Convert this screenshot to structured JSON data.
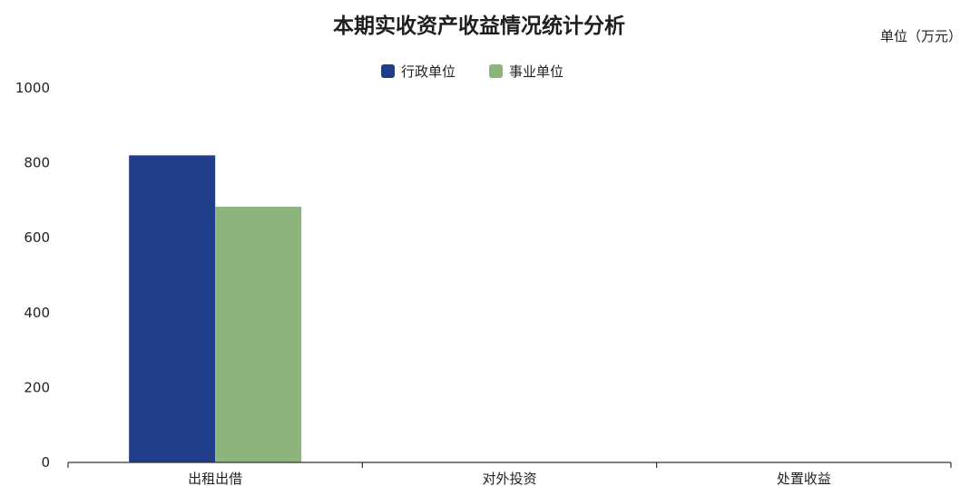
{
  "chart_data": {
    "type": "bar",
    "title": "本期实收资产收益情况统计分析",
    "unit_label": "单位（万元）",
    "categories": [
      "出租出借",
      "对外投资",
      "处置收益"
    ],
    "series": [
      {
        "name": "行政单位",
        "values": [
          820,
          0,
          0
        ],
        "color": "#203d8a"
      },
      {
        "name": "事业单位",
        "values": [
          683,
          0,
          0
        ],
        "color": "#8db47c"
      }
    ],
    "y_ticks": [
      "0",
      "200",
      "400",
      "600",
      "800",
      "1000"
    ],
    "ylim": [
      0,
      1000
    ],
    "legend_position": "top-center",
    "grid": false
  }
}
